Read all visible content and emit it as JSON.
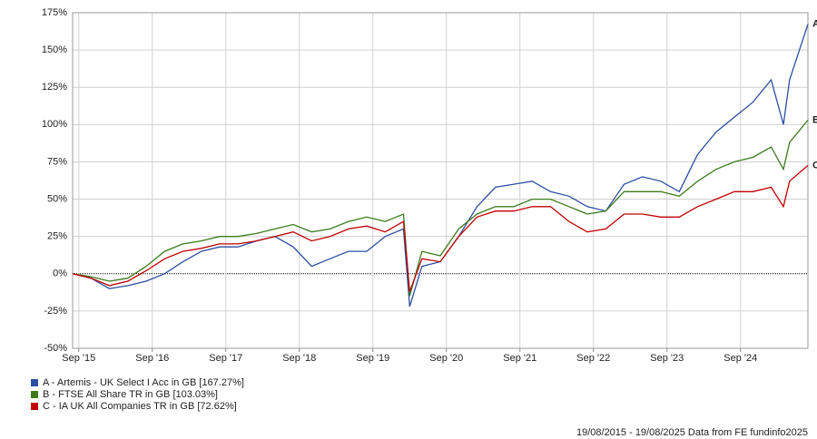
{
  "chart_data": {
    "type": "line",
    "x": [
      "2015-08",
      "2015-11",
      "2016-02",
      "2016-05",
      "2016-08",
      "2016-11",
      "2017-02",
      "2017-05",
      "2017-08",
      "2017-11",
      "2018-02",
      "2018-05",
      "2018-08",
      "2018-11",
      "2019-02",
      "2019-05",
      "2019-08",
      "2019-11",
      "2020-02",
      "2020-03",
      "2020-05",
      "2020-08",
      "2020-11",
      "2021-02",
      "2021-05",
      "2021-08",
      "2021-11",
      "2022-02",
      "2022-05",
      "2022-08",
      "2022-11",
      "2023-02",
      "2023-05",
      "2023-08",
      "2023-11",
      "2024-02",
      "2024-05",
      "2024-08",
      "2024-11",
      "2025-02",
      "2025-04",
      "2025-05",
      "2025-08"
    ],
    "series": [
      {
        "name": "A - Artemis - UK Select I Acc in GB [167.27%]",
        "label": "A",
        "color": "#2b4fa3",
        "values": [
          0,
          -3,
          -10,
          -8,
          -5,
          0,
          8,
          15,
          18,
          18,
          22,
          25,
          18,
          5,
          10,
          15,
          15,
          25,
          30,
          -22,
          5,
          8,
          25,
          45,
          58,
          60,
          62,
          55,
          52,
          45,
          42,
          60,
          65,
          62,
          55,
          80,
          95,
          105,
          115,
          130,
          100,
          130,
          167.27
        ]
      },
      {
        "name": "B - FTSE All Share TR in GB [103.03%]",
        "label": "B",
        "color": "#3c7a1c",
        "values": [
          0,
          -2,
          -5,
          -3,
          5,
          15,
          20,
          22,
          25,
          25,
          27,
          30,
          33,
          28,
          30,
          35,
          38,
          35,
          40,
          -15,
          15,
          12,
          30,
          40,
          45,
          45,
          50,
          50,
          45,
          40,
          42,
          55,
          55,
          55,
          52,
          62,
          70,
          75,
          78,
          85,
          70,
          88,
          103.03
        ]
      },
      {
        "name": "C - IA UK All Companies TR in GB [72.62%]",
        "label": "C",
        "color": "#c00000",
        "values": [
          0,
          -3,
          -8,
          -5,
          2,
          10,
          15,
          17,
          20,
          20,
          22,
          25,
          28,
          22,
          25,
          30,
          32,
          28,
          35,
          -12,
          10,
          8,
          25,
          38,
          42,
          42,
          45,
          45,
          35,
          28,
          30,
          40,
          40,
          38,
          38,
          45,
          50,
          55,
          55,
          58,
          45,
          62,
          72.62
        ]
      }
    ],
    "xlim": [
      "2015-08",
      "2025-08"
    ],
    "xticks": [
      {
        "value": "2015-09",
        "label": "Sep '15"
      },
      {
        "value": "2016-09",
        "label": "Sep '16"
      },
      {
        "value": "2017-09",
        "label": "Sep '17"
      },
      {
        "value": "2018-09",
        "label": "Sep '18"
      },
      {
        "value": "2019-09",
        "label": "Sep '19"
      },
      {
        "value": "2020-09",
        "label": "Sep '20"
      },
      {
        "value": "2021-09",
        "label": "Sep '21"
      },
      {
        "value": "2022-09",
        "label": "Sep '22"
      },
      {
        "value": "2023-09",
        "label": "Sep '23"
      },
      {
        "value": "2024-09",
        "label": "Sep '24"
      }
    ],
    "ylim": [
      -50,
      175
    ],
    "yticks": [
      {
        "value": -50,
        "label": "-50%"
      },
      {
        "value": -25,
        "label": "-25%"
      },
      {
        "value": 0,
        "label": "0%"
      },
      {
        "value": 25,
        "label": "25%"
      },
      {
        "value": 50,
        "label": "50%"
      },
      {
        "value": 75,
        "label": "75%"
      },
      {
        "value": 100,
        "label": "100%"
      },
      {
        "value": 125,
        "label": "125%"
      },
      {
        "value": 150,
        "label": "150%"
      },
      {
        "value": 175,
        "label": "175%"
      }
    ],
    "grid": true,
    "footer": "19/08/2015 - 19/08/2025 Data from FE fundinfo2025"
  }
}
